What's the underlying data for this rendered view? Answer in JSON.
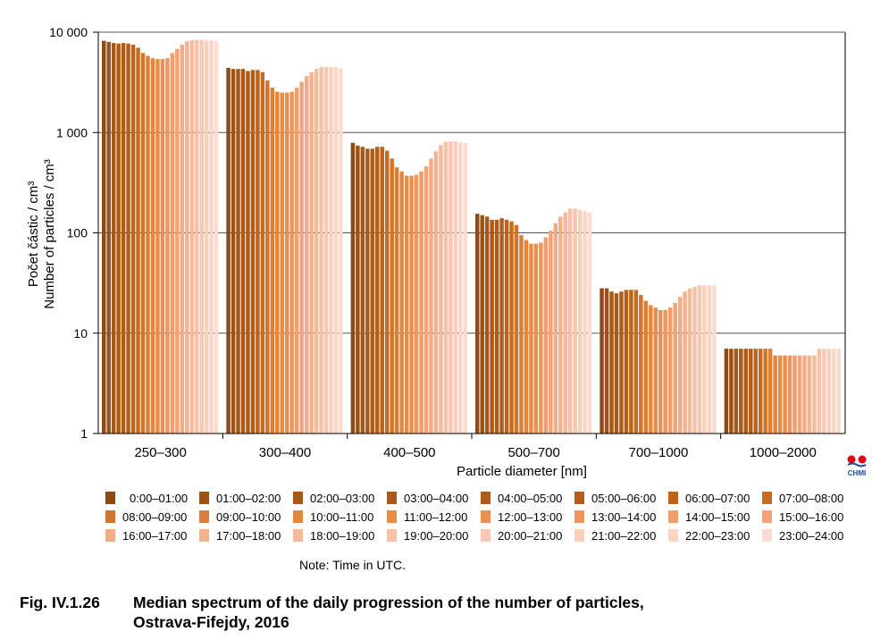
{
  "chart_data": {
    "type": "bar",
    "ylabel_cz": "Počet částic / cm³",
    "ylabel_en": "Number of particles  / cm³",
    "xlabel": "Particle diameter [nm]",
    "yscale": "log",
    "ylim": [
      1,
      10000
    ],
    "yticks": [
      1,
      10,
      100,
      1000,
      10000
    ],
    "ytick_labels": [
      "1",
      "10",
      "100",
      "1 000",
      "10 000"
    ],
    "grid": "horizontal",
    "categories": [
      "250–300",
      "300–400",
      "400–500",
      "500–700",
      "700–1000",
      "1000–2000"
    ],
    "hours": [
      "0:00–01:00",
      "01:00–02:00",
      "02:00–03:00",
      "03:00–04:00",
      "04:00–05:00",
      "05:00–06:00",
      "06:00–07:00",
      "07:00–08:00",
      "08:00–09:00",
      "09:00–10:00",
      "10:00–11:00",
      "11:00–12:00",
      "12:00–13:00",
      "13:00–14:00",
      "14:00–15:00",
      "15:00–16:00",
      "16:00–17:00",
      "17:00–18:00",
      "18:00–19:00",
      "19:00–20:00",
      "20:00–21:00",
      "21:00–22:00",
      "22:00–23:00",
      "23:00–24:00"
    ],
    "colors": [
      "#8e4a10",
      "#9c5214",
      "#a65814",
      "#aa5a16",
      "#b05c18",
      "#b45e1a",
      "#bc641c",
      "#c86c20",
      "#d2742a",
      "#dc7e34",
      "#e4863c",
      "#ea8c44",
      "#ec9050",
      "#ee9660",
      "#f09e6c",
      "#f2a478",
      "#f4ac86",
      "#f5b290",
      "#f6ba9c",
      "#f8c2a8",
      "#f9c8b2",
      "#fad0bc",
      "#fbd6c6",
      "#fcdcd0"
    ],
    "values": [
      [
        8200,
        8000,
        7800,
        7700,
        7800,
        7700,
        7500,
        7000,
        6200,
        5800,
        5500,
        5400,
        5400,
        5500,
        6200,
        6800,
        7500,
        8100,
        8300,
        8400,
        8400,
        8300,
        8300,
        8200
      ],
      [
        4400,
        4300,
        4300,
        4300,
        4100,
        4200,
        4200,
        4000,
        3300,
        2800,
        2550,
        2500,
        2500,
        2550,
        2800,
        3200,
        3650,
        4000,
        4300,
        4500,
        4500,
        4500,
        4500,
        4400
      ],
      [
        790,
        740,
        720,
        690,
        690,
        720,
        720,
        660,
        550,
        450,
        410,
        370,
        370,
        380,
        410,
        460,
        550,
        650,
        750,
        810,
        820,
        820,
        800,
        790
      ],
      [
        155,
        150,
        145,
        135,
        135,
        140,
        135,
        130,
        120,
        95,
        85,
        78,
        78,
        80,
        90,
        105,
        125,
        145,
        160,
        175,
        175,
        170,
        165,
        160
      ],
      [
        28,
        28,
        26,
        25,
        26,
        27,
        27,
        27,
        24,
        21,
        19,
        18,
        17,
        17,
        18,
        20,
        23,
        26,
        28,
        29,
        30,
        30,
        30,
        30
      ],
      [
        7,
        7,
        7,
        7,
        7,
        7,
        7,
        7,
        7,
        7,
        6,
        6,
        6,
        6,
        6,
        6,
        6,
        6,
        6,
        7,
        7,
        7,
        7,
        7
      ]
    ]
  },
  "legend_items": [
    "0:00–01:00",
    "01:00–02:00",
    "02:00–03:00",
    "03:00–04:00",
    "04:00–05:00",
    "05:00–06:00",
    "06:00–07:00",
    "07:00–08:00",
    "08:00–09:00",
    "09:00–10:00",
    "10:00–11:00",
    "11:00–12:00",
    "12:00–13:00",
    "13:00–14:00",
    "14:00–15:00",
    "15:00–16:00",
    "16:00–17:00",
    "17:00–18:00",
    "18:00–19:00",
    "19:00–20:00",
    "20:00–21:00",
    "21:00–22:00",
    "22:00–23:00",
    "23:00–24:00"
  ],
  "note": "Note: Time in UTC.",
  "caption": {
    "number": "Fig. IV.1.26",
    "line1": "Median spectrum of the daily progression of the number of particles,",
    "line2": "Ostrava-Fifejdy, 2016"
  },
  "logo": {
    "text": "CHMI",
    "colors": [
      "#e30613",
      "#1a4b9c"
    ]
  }
}
